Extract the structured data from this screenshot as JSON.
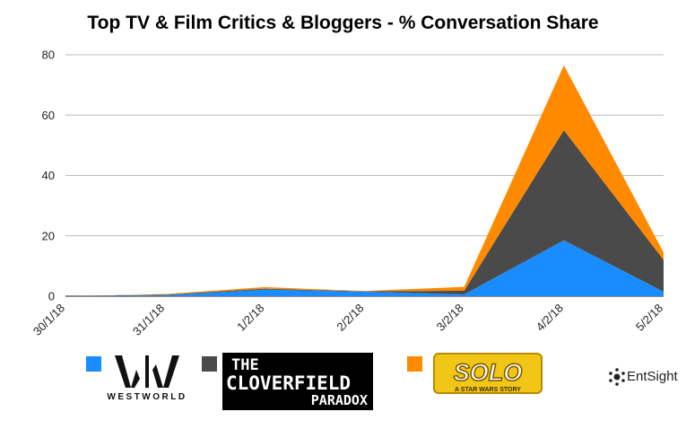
{
  "chart_data": {
    "type": "area",
    "stacked": true,
    "title": "Top TV & Film Critics & Bloggers - % Conversation Share",
    "categories": [
      "30/1/18",
      "31/1/18",
      "1/2/18",
      "2/2/18",
      "3/2/18",
      "4/2/18",
      "5/2/18"
    ],
    "series": [
      {
        "name": "Westworld",
        "color": "#1a8cff",
        "values": [
          0,
          0.3,
          2.2,
          1.5,
          0.6,
          18.5,
          1.5
        ]
      },
      {
        "name": "The Cloverfield Paradox",
        "color": "#4a4a4a",
        "values": [
          0,
          0.2,
          0.3,
          0.1,
          1.2,
          36.5,
          10.5
        ]
      },
      {
        "name": "Solo",
        "color": "#ff8a00",
        "values": [
          0,
          0.2,
          0.5,
          0.1,
          1.3,
          21.5,
          2.5
        ]
      }
    ],
    "ylim": [
      0,
      80
    ],
    "yticks": [
      0,
      20,
      40,
      60,
      80
    ],
    "grid": true,
    "legend_position": "bottom",
    "xlabel": "",
    "ylabel": ""
  },
  "legend": {
    "westworld": {
      "text": "WESTWORLD"
    },
    "cloverfield": {
      "line1": "THE",
      "line2": "CLOVERFIELD",
      "line3": "PARADOX"
    },
    "solo": {
      "text": "SOLO",
      "subtitle": "A STAR WARS STORY"
    }
  },
  "branding": {
    "text": "EntSight"
  }
}
